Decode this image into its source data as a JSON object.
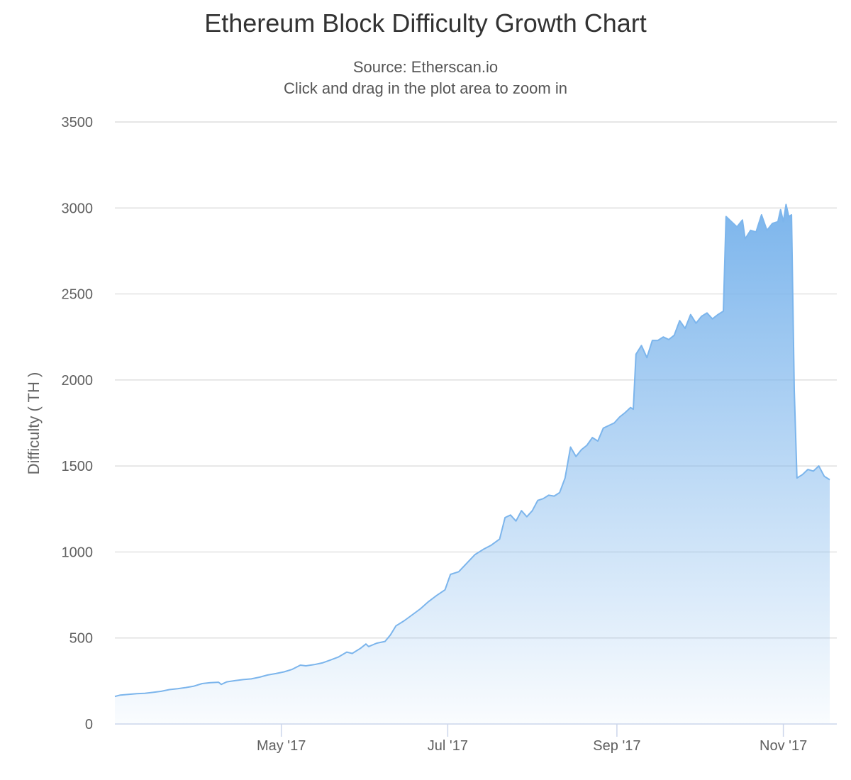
{
  "colors": {
    "series": "#7cb5ec",
    "grid": "#d8d8d8",
    "axis": "#ccd6eb"
  },
  "chart_data": {
    "type": "area",
    "title": "Ethereum Block Difficulty Growth Chart",
    "subtitle": "Source: Etherscan.io",
    "subtitle2": "Click and drag in the plot area to zoom in",
    "xlabel": "",
    "ylabel": "Difficulty ( TH )",
    "ylim": [
      0,
      3500
    ],
    "yticks": [
      "0",
      "500",
      "1000",
      "1500",
      "2000",
      "2500",
      "3000",
      "3500"
    ],
    "xlim": [
      "2017-03-01",
      "2017-11-18"
    ],
    "xticks": [
      {
        "date": "2017-05-01",
        "label": "May '17"
      },
      {
        "date": "2017-07-01",
        "label": "Jul '17"
      },
      {
        "date": "2017-09-01",
        "label": "Sep '17"
      },
      {
        "date": "2017-11-01",
        "label": "Nov '17"
      }
    ],
    "series": [
      {
        "name": "Difficulty",
        "points": [
          [
            "2017-03-01",
            160
          ],
          [
            "2017-03-03",
            168
          ],
          [
            "2017-03-06",
            172
          ],
          [
            "2017-03-09",
            176
          ],
          [
            "2017-03-12",
            178
          ],
          [
            "2017-03-15",
            184
          ],
          [
            "2017-03-18",
            190
          ],
          [
            "2017-03-21",
            200
          ],
          [
            "2017-03-24",
            205
          ],
          [
            "2017-03-27",
            212
          ],
          [
            "2017-03-30",
            220
          ],
          [
            "2017-04-02",
            235
          ],
          [
            "2017-04-05",
            240
          ],
          [
            "2017-04-08",
            243
          ],
          [
            "2017-04-09",
            230
          ],
          [
            "2017-04-11",
            245
          ],
          [
            "2017-04-14",
            252
          ],
          [
            "2017-04-17",
            258
          ],
          [
            "2017-04-20",
            262
          ],
          [
            "2017-04-23",
            272
          ],
          [
            "2017-04-26",
            285
          ],
          [
            "2017-04-29",
            293
          ],
          [
            "2017-05-02",
            303
          ],
          [
            "2017-05-05",
            318
          ],
          [
            "2017-05-08",
            342
          ],
          [
            "2017-05-10",
            338
          ],
          [
            "2017-05-13",
            345
          ],
          [
            "2017-05-16",
            355
          ],
          [
            "2017-05-19",
            372
          ],
          [
            "2017-05-22",
            390
          ],
          [
            "2017-05-25",
            418
          ],
          [
            "2017-05-27",
            410
          ],
          [
            "2017-05-30",
            440
          ],
          [
            "2017-06-01",
            465
          ],
          [
            "2017-06-02",
            450
          ],
          [
            "2017-06-05",
            470
          ],
          [
            "2017-06-08",
            480
          ],
          [
            "2017-06-10",
            518
          ],
          [
            "2017-06-12",
            570
          ],
          [
            "2017-06-15",
            600
          ],
          [
            "2017-06-18",
            635
          ],
          [
            "2017-06-21",
            670
          ],
          [
            "2017-06-24",
            712
          ],
          [
            "2017-06-27",
            748
          ],
          [
            "2017-06-30",
            780
          ],
          [
            "2017-07-02",
            870
          ],
          [
            "2017-07-05",
            885
          ],
          [
            "2017-07-08",
            935
          ],
          [
            "2017-07-11",
            985
          ],
          [
            "2017-07-14",
            1015
          ],
          [
            "2017-07-17",
            1040
          ],
          [
            "2017-07-20",
            1075
          ],
          [
            "2017-07-22",
            1200
          ],
          [
            "2017-07-24",
            1215
          ],
          [
            "2017-07-26",
            1180
          ],
          [
            "2017-07-28",
            1240
          ],
          [
            "2017-07-30",
            1205
          ],
          [
            "2017-08-01",
            1240
          ],
          [
            "2017-08-03",
            1300
          ],
          [
            "2017-08-05",
            1310
          ],
          [
            "2017-08-07",
            1330
          ],
          [
            "2017-08-09",
            1325
          ],
          [
            "2017-08-11",
            1345
          ],
          [
            "2017-08-13",
            1430
          ],
          [
            "2017-08-15",
            1610
          ],
          [
            "2017-08-17",
            1555
          ],
          [
            "2017-08-19",
            1595
          ],
          [
            "2017-08-21",
            1620
          ],
          [
            "2017-08-23",
            1665
          ],
          [
            "2017-08-25",
            1645
          ],
          [
            "2017-08-27",
            1720
          ],
          [
            "2017-08-29",
            1735
          ],
          [
            "2017-08-31",
            1750
          ],
          [
            "2017-09-02",
            1785
          ],
          [
            "2017-09-04",
            1810
          ],
          [
            "2017-09-06",
            1840
          ],
          [
            "2017-09-07",
            1830
          ],
          [
            "2017-09-08",
            2150
          ],
          [
            "2017-09-10",
            2200
          ],
          [
            "2017-09-12",
            2130
          ],
          [
            "2017-09-14",
            2230
          ],
          [
            "2017-09-16",
            2230
          ],
          [
            "2017-09-18",
            2250
          ],
          [
            "2017-09-20",
            2235
          ],
          [
            "2017-09-22",
            2260
          ],
          [
            "2017-09-24",
            2345
          ],
          [
            "2017-09-26",
            2300
          ],
          [
            "2017-09-28",
            2380
          ],
          [
            "2017-09-30",
            2330
          ],
          [
            "2017-10-02",
            2370
          ],
          [
            "2017-10-04",
            2390
          ],
          [
            "2017-10-06",
            2355
          ],
          [
            "2017-10-08",
            2380
          ],
          [
            "2017-10-10",
            2400
          ],
          [
            "2017-10-11",
            2950
          ],
          [
            "2017-10-13",
            2920
          ],
          [
            "2017-10-15",
            2890
          ],
          [
            "2017-10-17",
            2930
          ],
          [
            "2017-10-18",
            2820
          ],
          [
            "2017-10-20",
            2870
          ],
          [
            "2017-10-22",
            2860
          ],
          [
            "2017-10-24",
            2960
          ],
          [
            "2017-10-26",
            2870
          ],
          [
            "2017-10-28",
            2910
          ],
          [
            "2017-10-30",
            2920
          ],
          [
            "2017-10-31",
            2990
          ],
          [
            "2017-11-01",
            2920
          ],
          [
            "2017-11-02",
            3020
          ],
          [
            "2017-11-03",
            2950
          ],
          [
            "2017-11-04",
            2960
          ],
          [
            "2017-11-05",
            1940
          ],
          [
            "2017-11-06",
            1430
          ],
          [
            "2017-11-08",
            1450
          ],
          [
            "2017-11-10",
            1480
          ],
          [
            "2017-11-12",
            1470
          ],
          [
            "2017-11-14",
            1500
          ],
          [
            "2017-11-16",
            1440
          ],
          [
            "2017-11-18",
            1420
          ]
        ]
      }
    ]
  }
}
